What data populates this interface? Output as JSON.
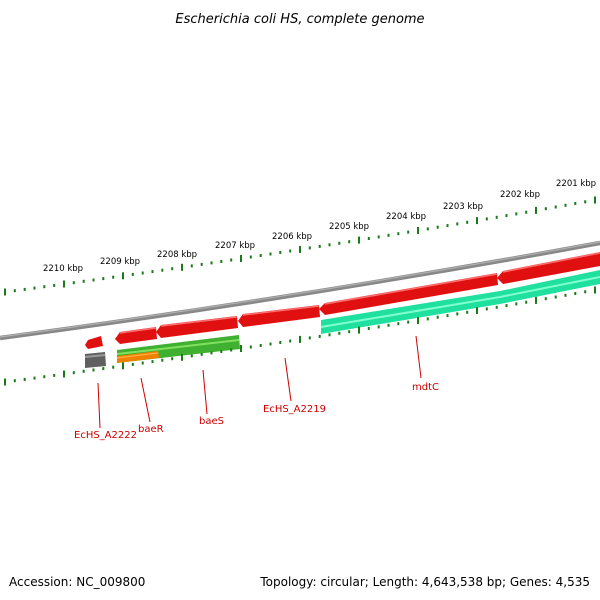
{
  "title": "Escherichia coli HS, complete genome",
  "footer": {
    "accession": "Accession: NC_009800",
    "summary": "Topology: circular; Length: 4,643,538 bp; Genes: 4,535"
  },
  "kbp_labels": [
    "2210 kbp",
    "2209 kbp",
    "2208 kbp",
    "2207 kbp",
    "2206 kbp",
    "2205 kbp",
    "2204 kbp",
    "2203 kbp",
    "2202 kbp",
    "2201 kbp"
  ],
  "gene_labels": [
    "EcHS_A2222",
    "baeR",
    "baeS",
    "EcHS_A2219",
    "mdtC"
  ],
  "colors": {
    "backbone": "#888888",
    "reverse_strand_gene": "#e01010",
    "forward_strand_gene": "#20e0a0",
    "green_feature": "#40b030",
    "orange_feature": "#f08000",
    "gray_feature": "#606060",
    "tick": "#1a7a1a",
    "label": "#cc0000"
  }
}
